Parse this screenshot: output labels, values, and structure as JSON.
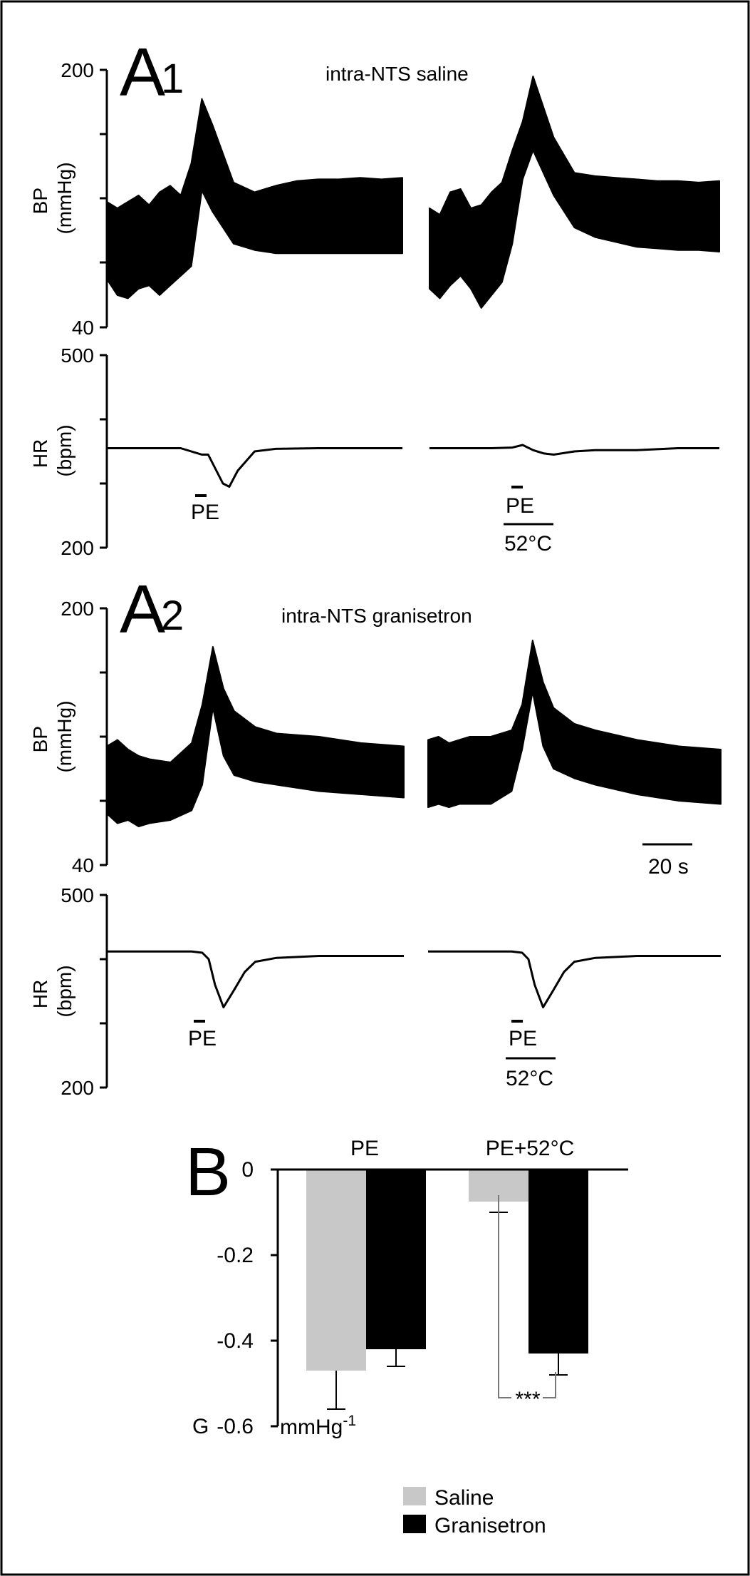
{
  "chart_data": [
    {
      "type": "line",
      "panel": "A1",
      "condition": "intra-NTS saline",
      "bp": {
        "ylabel": [
          "BP",
          "(mmHg)"
        ],
        "ylim": [
          40,
          200
        ],
        "tick_labels": [
          "200",
          "40"
        ],
        "series": [
          {
            "name": "PE",
            "x": [
              0,
              5,
              10,
              15,
              20,
              25,
              30,
              35,
              40,
              45,
              50,
              60,
              70,
              80,
              90,
              100,
              110,
              120,
              130,
              140
            ],
            "upper": [
              118,
              114,
              118,
              122,
              116,
              124,
              128,
              122,
              142,
              182,
              166,
              130,
              124,
              128,
              131,
              132,
              132,
              133,
              132,
              133
            ],
            "lower": [
              70,
              60,
              58,
              64,
              66,
              60,
              66,
              72,
              78,
              125,
              112,
              92,
              88,
              86,
              86,
              86,
              86,
              86,
              86,
              86
            ]
          },
          {
            "name": "PE+52°C",
            "x": [
              0,
              5,
              10,
              15,
              20,
              25,
              30,
              35,
              40,
              45,
              50,
              60,
              70,
              80,
              90,
              100,
              110,
              120,
              130,
              140
            ],
            "upper": [
              114,
              110,
              124,
              126,
              114,
              116,
              124,
              130,
              150,
              168,
              196,
              158,
              136,
              134,
              133,
              132,
              131,
              131,
              130,
              131
            ],
            "lower": [
              64,
              58,
              66,
              72,
              64,
              52,
              60,
              68,
              92,
              132,
              150,
              122,
              102,
              96,
              93,
              90,
              89,
              88,
              88,
              87
            ]
          }
        ]
      },
      "hr": {
        "ylabel": [
          "HR",
          "(bpm)"
        ],
        "ylim": [
          200,
          500
        ],
        "tick_labels": [
          "500",
          "200"
        ],
        "series": [
          {
            "name": "PE",
            "x": [
              0,
              20,
              35,
              40,
              45,
              48,
              55,
              58,
              62,
              70,
              80,
              100,
              120,
              140
            ],
            "values": [
              355,
              355,
              355,
              350,
              345,
              345,
              300,
              295,
              320,
              350,
              354,
              355,
              355,
              355
            ]
          },
          {
            "name": "PE+52°C",
            "x": [
              0,
              20,
              30,
              40,
              45,
              50,
              55,
              60,
              70,
              80,
              100,
              120,
              140
            ],
            "values": [
              355,
              355,
              355,
              356,
              360,
              352,
              347,
              345,
              350,
              352,
              352,
              355,
              355
            ]
          }
        ]
      },
      "events": {
        "pe_label": "PE",
        "heat_label": "52°C"
      }
    },
    {
      "type": "line",
      "panel": "A2",
      "condition": "intra-NTS granisetron",
      "bp": {
        "ylabel": [
          "BP",
          "(mmHg)"
        ],
        "ylim": [
          40,
          200
        ],
        "tick_labels": [
          "200",
          "40"
        ],
        "series": [
          {
            "name": "PE",
            "x": [
              0,
              5,
              10,
              15,
              20,
              30,
              40,
              45,
              50,
              55,
              60,
              70,
              80,
              100,
              120,
              140
            ],
            "upper": [
              114,
              118,
              112,
              108,
              106,
              104,
              116,
              140,
              176,
              150,
              136,
              126,
              122,
              120,
              116,
              114
            ],
            "lower": [
              72,
              66,
              68,
              64,
              66,
              68,
              74,
              90,
              138,
              108,
              96,
              92,
              90,
              86,
              84,
              82
            ],
            "min_dip": 64
          },
          {
            "name": "PE+52°C",
            "x": [
              0,
              5,
              10,
              15,
              20,
              30,
              40,
              45,
              50,
              55,
              60,
              70,
              80,
              100,
              120,
              140
            ],
            "upper": [
              118,
              120,
              116,
              118,
              120,
              120,
              124,
              140,
              180,
              154,
              138,
              128,
              124,
              118,
              114,
              112
            ],
            "lower": [
              76,
              78,
              76,
              78,
              78,
              78,
              86,
              112,
              148,
              114,
              100,
              94,
              90,
              84,
              80,
              78
            ]
          }
        ]
      },
      "hr": {
        "ylabel": [
          "HR",
          "(bpm)"
        ],
        "ylim": [
          200,
          500
        ],
        "tick_labels": [
          "500",
          "200"
        ],
        "series": [
          {
            "name": "PE",
            "x": [
              0,
              40,
              45,
              48,
              51,
              55,
              60,
              65,
              70,
              80,
              100,
              120,
              140
            ],
            "values": [
              412,
              412,
              410,
              400,
              360,
              325,
              352,
              380,
              396,
              402,
              405,
              405,
              405
            ]
          },
          {
            "name": "PE+52°C",
            "x": [
              0,
              40,
              45,
              48,
              51,
              55,
              60,
              65,
              70,
              80,
              100,
              120,
              140
            ],
            "values": [
              412,
              412,
              410,
              400,
              360,
              325,
              352,
              380,
              396,
              402,
              405,
              405,
              405
            ]
          }
        ]
      },
      "events": {
        "pe_label": "PE",
        "heat_label": "52°C",
        "scale_bar_label": "20 s"
      }
    },
    {
      "type": "bar",
      "panel": "B",
      "categories": [
        "PE",
        "PE+52°C"
      ],
      "series": [
        {
          "name": "Saline",
          "values": [
            -0.47,
            -0.075
          ],
          "errors": [
            0.09,
            0.025
          ],
          "color": "#c8c8c8"
        },
        {
          "name": "Granisetron",
          "values": [
            -0.42,
            -0.43
          ],
          "errors": [
            0.04,
            0.05
          ],
          "color": "#000000"
        }
      ],
      "ylim": [
        -0.6,
        0
      ],
      "tick_labels": [
        "0",
        "-0.2",
        "-0.4",
        "-0.6"
      ],
      "ylabel": "G",
      "unit": "mmHg",
      "unit_superscript": "-1",
      "significance": "***",
      "legend_position": "bottom-right"
    }
  ]
}
